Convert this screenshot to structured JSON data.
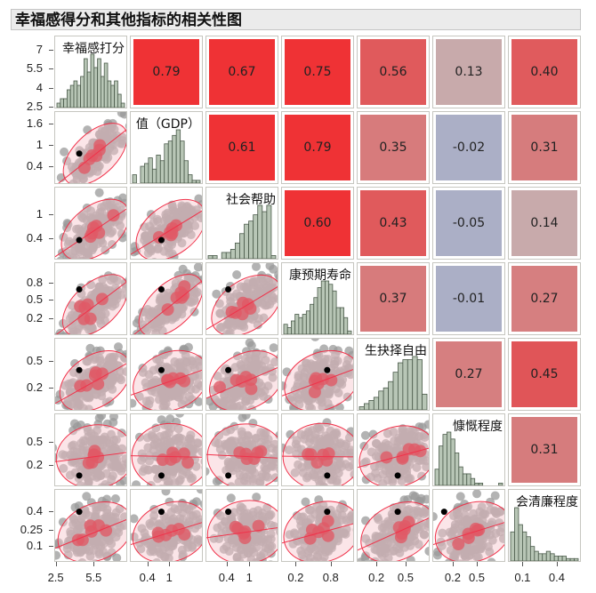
{
  "title": "幸福感得分和其他指标的相关性图",
  "chart_data": {
    "type": "scatter-matrix",
    "title": "幸福感得分和其他指标的相关性图",
    "variables": [
      {
        "label": "幸福感打分",
        "y_ticks": [
          "7",
          "5.5",
          "4",
          "2.5"
        ],
        "x_ticks": [
          "2.5",
          "5.5"
        ],
        "hist": [
          1,
          2,
          2,
          4,
          5,
          6,
          5,
          7,
          11,
          8,
          12,
          9,
          11,
          7,
          10,
          6,
          5,
          6,
          3,
          1
        ]
      },
      {
        "label": "值（GDP）",
        "y_ticks": [
          "1.6",
          "1",
          "0.4"
        ],
        "x_ticks": [
          "0.4",
          "1"
        ],
        "hist": [
          3,
          0,
          6,
          7,
          9,
          5,
          10,
          8,
          14,
          15,
          17,
          19,
          15,
          8,
          3,
          1,
          1
        ]
      },
      {
        "label": "社会帮助",
        "y_ticks": [
          "1",
          "0.4"
        ],
        "x_ticks": [
          "0.4",
          "1"
        ],
        "hist": [
          1,
          1,
          0,
          2,
          2,
          3,
          5,
          8,
          11,
          12,
          14,
          17,
          15,
          17,
          1
        ]
      },
      {
        "label": "康预期寿命",
        "y_ticks": [
          "0.8",
          "0.5",
          "0.2"
        ],
        "x_ticks": [
          "0.2",
          "0.8"
        ],
        "hist": [
          3,
          2,
          4,
          6,
          5,
          6,
          7,
          9,
          11,
          14,
          16,
          16,
          15,
          13,
          8,
          8,
          5,
          1
        ]
      },
      {
        "label": "生抉择自由",
        "y_ticks": [
          "0.5",
          "0.2"
        ],
        "x_ticks": [
          "0.2",
          "0.5"
        ],
        "hist": [
          1,
          2,
          3,
          4,
          6,
          7,
          9,
          12,
          15,
          16,
          16,
          17,
          16,
          5
        ]
      },
      {
        "label": "慷慨程度",
        "y_ticks": [
          "0.5",
          "0.2"
        ],
        "x_ticks": [
          "0.2",
          "0.5"
        ],
        "hist": [
          7,
          17,
          22,
          23,
          20,
          14,
          8,
          5,
          5,
          3,
          1,
          1,
          0,
          0,
          0,
          0,
          1
        ]
      },
      {
        "label": "会清廉程度",
        "y_ticks": [
          "0.4",
          "0.25",
          "0.1"
        ],
        "x_ticks": [
          "0.1",
          "0.4"
        ],
        "hist": [
          12,
          22,
          15,
          12,
          10,
          6,
          4,
          3,
          3,
          4,
          3,
          2,
          2,
          2,
          1,
          1,
          1
        ]
      }
    ],
    "correlations": [
      {
        "row": 0,
        "col": 1,
        "value": "0.79",
        "color": "#ef3235"
      },
      {
        "row": 0,
        "col": 2,
        "value": "0.67",
        "color": "#ef3235"
      },
      {
        "row": 0,
        "col": 3,
        "value": "0.75",
        "color": "#ef3235"
      },
      {
        "row": 0,
        "col": 4,
        "value": "0.56",
        "color": "#e05a5c"
      },
      {
        "row": 0,
        "col": 5,
        "value": "0.13",
        "color": "#c8aaab"
      },
      {
        "row": 0,
        "col": 6,
        "value": "0.40",
        "color": "#e05b5d"
      },
      {
        "row": 1,
        "col": 2,
        "value": "0.61",
        "color": "#ef3235"
      },
      {
        "row": 1,
        "col": 3,
        "value": "0.79",
        "color": "#ef3235"
      },
      {
        "row": 1,
        "col": 4,
        "value": "0.35",
        "color": "#d77b7c"
      },
      {
        "row": 1,
        "col": 5,
        "value": "-0.02",
        "color": "#abafc6"
      },
      {
        "row": 1,
        "col": 6,
        "value": "0.31",
        "color": "#d67c7d"
      },
      {
        "row": 2,
        "col": 3,
        "value": "0.60",
        "color": "#ef3235"
      },
      {
        "row": 2,
        "col": 4,
        "value": "0.43",
        "color": "#e05a5c"
      },
      {
        "row": 2,
        "col": 5,
        "value": "-0.05",
        "color": "#abafc6"
      },
      {
        "row": 2,
        "col": 6,
        "value": "0.14",
        "color": "#c8aaab"
      },
      {
        "row": 3,
        "col": 4,
        "value": "0.37",
        "color": "#d77b7c"
      },
      {
        "row": 3,
        "col": 5,
        "value": "-0.01",
        "color": "#abafc6"
      },
      {
        "row": 3,
        "col": 6,
        "value": "0.27",
        "color": "#d67f80"
      },
      {
        "row": 4,
        "col": 5,
        "value": "0.27",
        "color": "#d67f80"
      },
      {
        "row": 4,
        "col": 6,
        "value": "0.45",
        "color": "#e05558"
      },
      {
        "row": 5,
        "col": 6,
        "value": "0.31",
        "color": "#d67c7d"
      }
    ],
    "colors": {
      "hist_fill": "#b8c6b6",
      "hist_stroke": "#4a5a4a",
      "points": "#9a9a9a",
      "density": "#e05a66",
      "ellipse": "#f0324a",
      "highlight": "#000000"
    }
  }
}
